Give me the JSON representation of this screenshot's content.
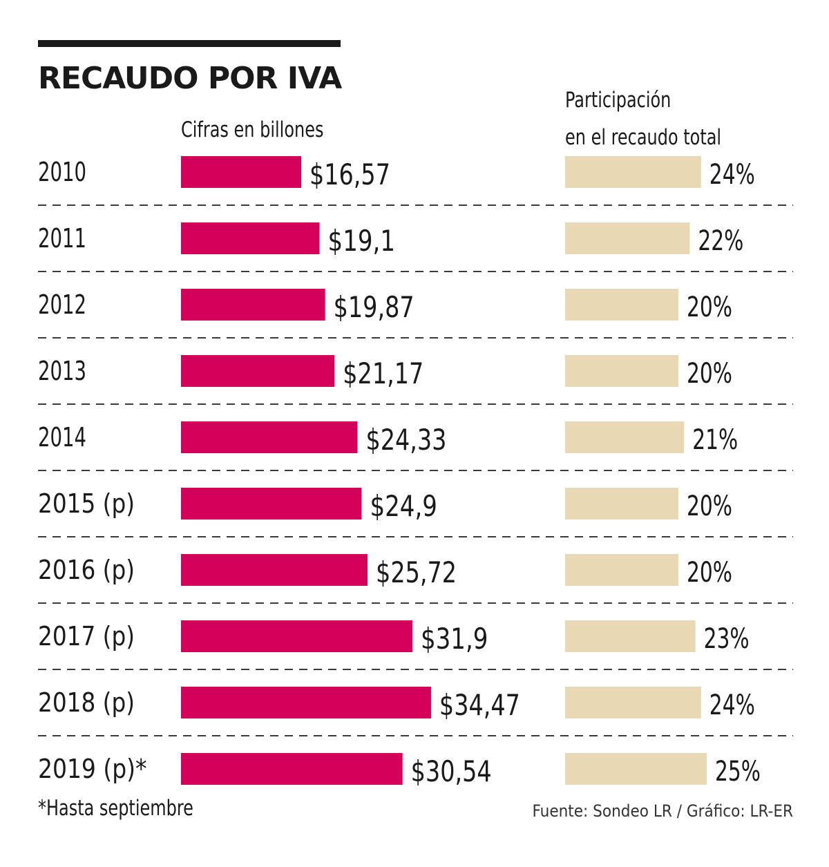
{
  "title": "RECAUDO POR IVA",
  "subtitle": "Cifras en billones",
  "share_header": {
    "line1": "Participación",
    "line2": "en el recaudo total"
  },
  "footnote": "*Hasta septiembre",
  "source": "Fuente: Sondeo LR / Gráfico: LR-ER",
  "colors": {
    "revenue_bar": "#d4005a",
    "share_bar": "#e8d8b4",
    "text": "#1a1a1a",
    "divider": "#3a3a3a"
  },
  "chart_data": {
    "type": "bar",
    "orientation": "horizontal",
    "categories": [
      "2010",
      "2011",
      "2012",
      "2013",
      "2014",
      "2015 (p)",
      "2016 (p)",
      "2017 (p)",
      "2018 (p)",
      "2019 (p)*"
    ],
    "series": [
      {
        "values": [
          16.57,
          19.1,
          19.87,
          21.17,
          24.33,
          24.9,
          25.72,
          31.9,
          34.47,
          30.54
        ],
        "labels": [
          "$16,57",
          "$19,1",
          "$19,87",
          "$21,17",
          "$24,33",
          "$24,9",
          "$25,72",
          "$31,9",
          "$34,47",
          "$30,54"
        ]
      },
      {
        "values": [
          24,
          22,
          20,
          20,
          21,
          20,
          20,
          23,
          24,
          25
        ],
        "labels": [
          "24%",
          "22%",
          "20%",
          "20%",
          "21%",
          "20%",
          "20%",
          "23%",
          "24%",
          "25%"
        ]
      }
    ],
    "grid": false
  }
}
